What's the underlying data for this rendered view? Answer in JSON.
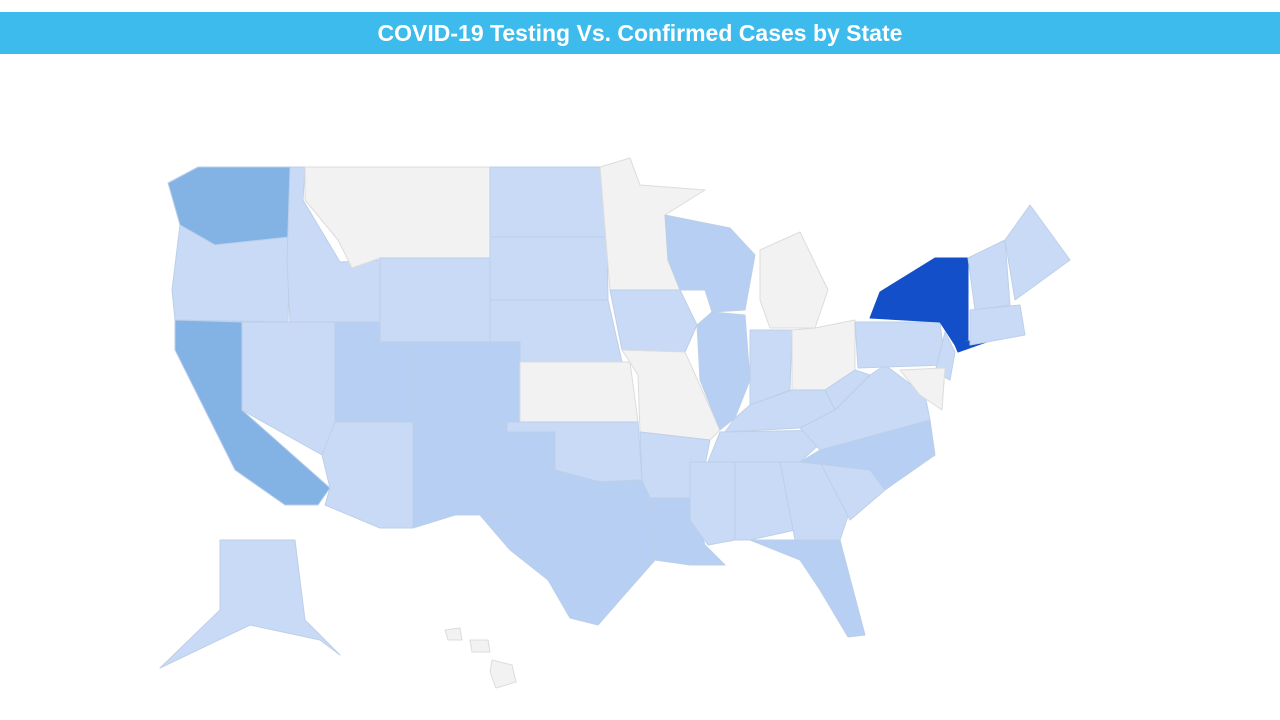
{
  "header": {
    "title": "COVID-19 Testing Vs. Confirmed Cases by State"
  }
}
